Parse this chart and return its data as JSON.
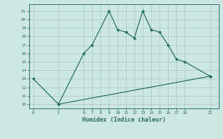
{
  "line1_x": [
    0,
    3,
    6,
    7,
    9,
    10,
    11,
    12,
    13,
    14,
    15,
    16,
    17,
    18,
    21
  ],
  "line1_y": [
    13,
    10,
    16,
    17,
    21,
    18.8,
    18.5,
    17.8,
    21,
    18.8,
    18.5,
    17,
    15.3,
    15,
    13.3
  ],
  "line2_x": [
    3,
    21
  ],
  "line2_y": [
    10,
    13.3
  ],
  "line_color": "#2d6e63",
  "bg_color": "#cde8e2",
  "grid_color": "#a8cfc8",
  "xlabel": "Humidex (Indice chaleur)",
  "xlim": [
    -0.5,
    22
  ],
  "ylim": [
    9.5,
    21.8
  ],
  "xticks": [
    0,
    3,
    6,
    7,
    8,
    9,
    10,
    11,
    12,
    13,
    14,
    15,
    16,
    17,
    18,
    21
  ],
  "yticks": [
    10,
    11,
    12,
    13,
    14,
    15,
    16,
    17,
    18,
    19,
    20,
    21
  ]
}
